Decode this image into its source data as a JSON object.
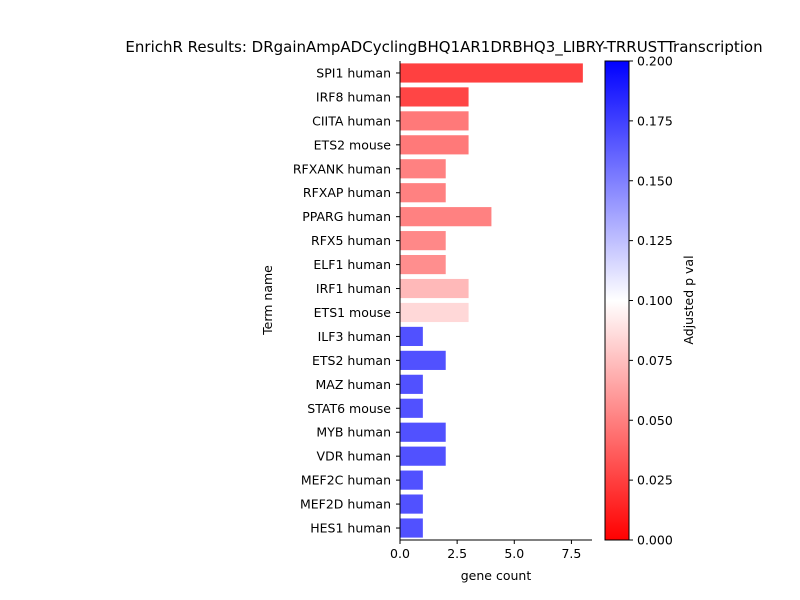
{
  "chart_data": {
    "type": "bar",
    "orientation": "horizontal",
    "title": "EnrichR Results: DRgainAmpADCyclingBHQ1AR1DRBHQ3_LIBRY-TRRUSTTranscription",
    "xlabel": "gene count",
    "ylabel": "Term name",
    "xlim": [
      0,
      8.4
    ],
    "xticks": [
      0.0,
      2.5,
      5.0,
      7.5
    ],
    "xtick_labels": [
      "0.0",
      "2.5",
      "5.0",
      "7.5"
    ],
    "grid": false,
    "categories": [
      "SPI1 human",
      "IRF8 human",
      "CIITA human",
      "ETS2 mouse",
      "RFXANK human",
      "RFXAP human",
      "PPARG human",
      "RFX5 human",
      "ELF1 human",
      "IRF1 human",
      "ETS1 mouse",
      "ILF3 human",
      "ETS2 human",
      "MAZ human",
      "STAT6 mouse",
      "MYB human",
      "VDR human",
      "MEF2C human",
      "MEF2D human",
      "HES1 human"
    ],
    "values": [
      8,
      3,
      3,
      3,
      2,
      2,
      4,
      2,
      2,
      3,
      3,
      1,
      2,
      1,
      1,
      2,
      2,
      1,
      1,
      1
    ],
    "adjusted_p": [
      0.012,
      0.014,
      0.038,
      0.038,
      0.042,
      0.042,
      0.042,
      0.045,
      0.048,
      0.068,
      0.082,
      0.18,
      0.18,
      0.18,
      0.18,
      0.18,
      0.18,
      0.18,
      0.18,
      0.18
    ],
    "colorbar": {
      "label": "Adjusted p val",
      "range": [
        0.0,
        0.2
      ],
      "ticks": [
        0.0,
        0.025,
        0.05,
        0.075,
        0.1,
        0.125,
        0.15,
        0.175,
        0.2
      ],
      "tick_labels": [
        "0.000",
        "0.025",
        "0.050",
        "0.075",
        "0.100",
        "0.125",
        "0.150",
        "0.175",
        "0.200"
      ],
      "colormap": [
        "#ff0000",
        "#ffffff",
        "#0000ff"
      ]
    }
  }
}
